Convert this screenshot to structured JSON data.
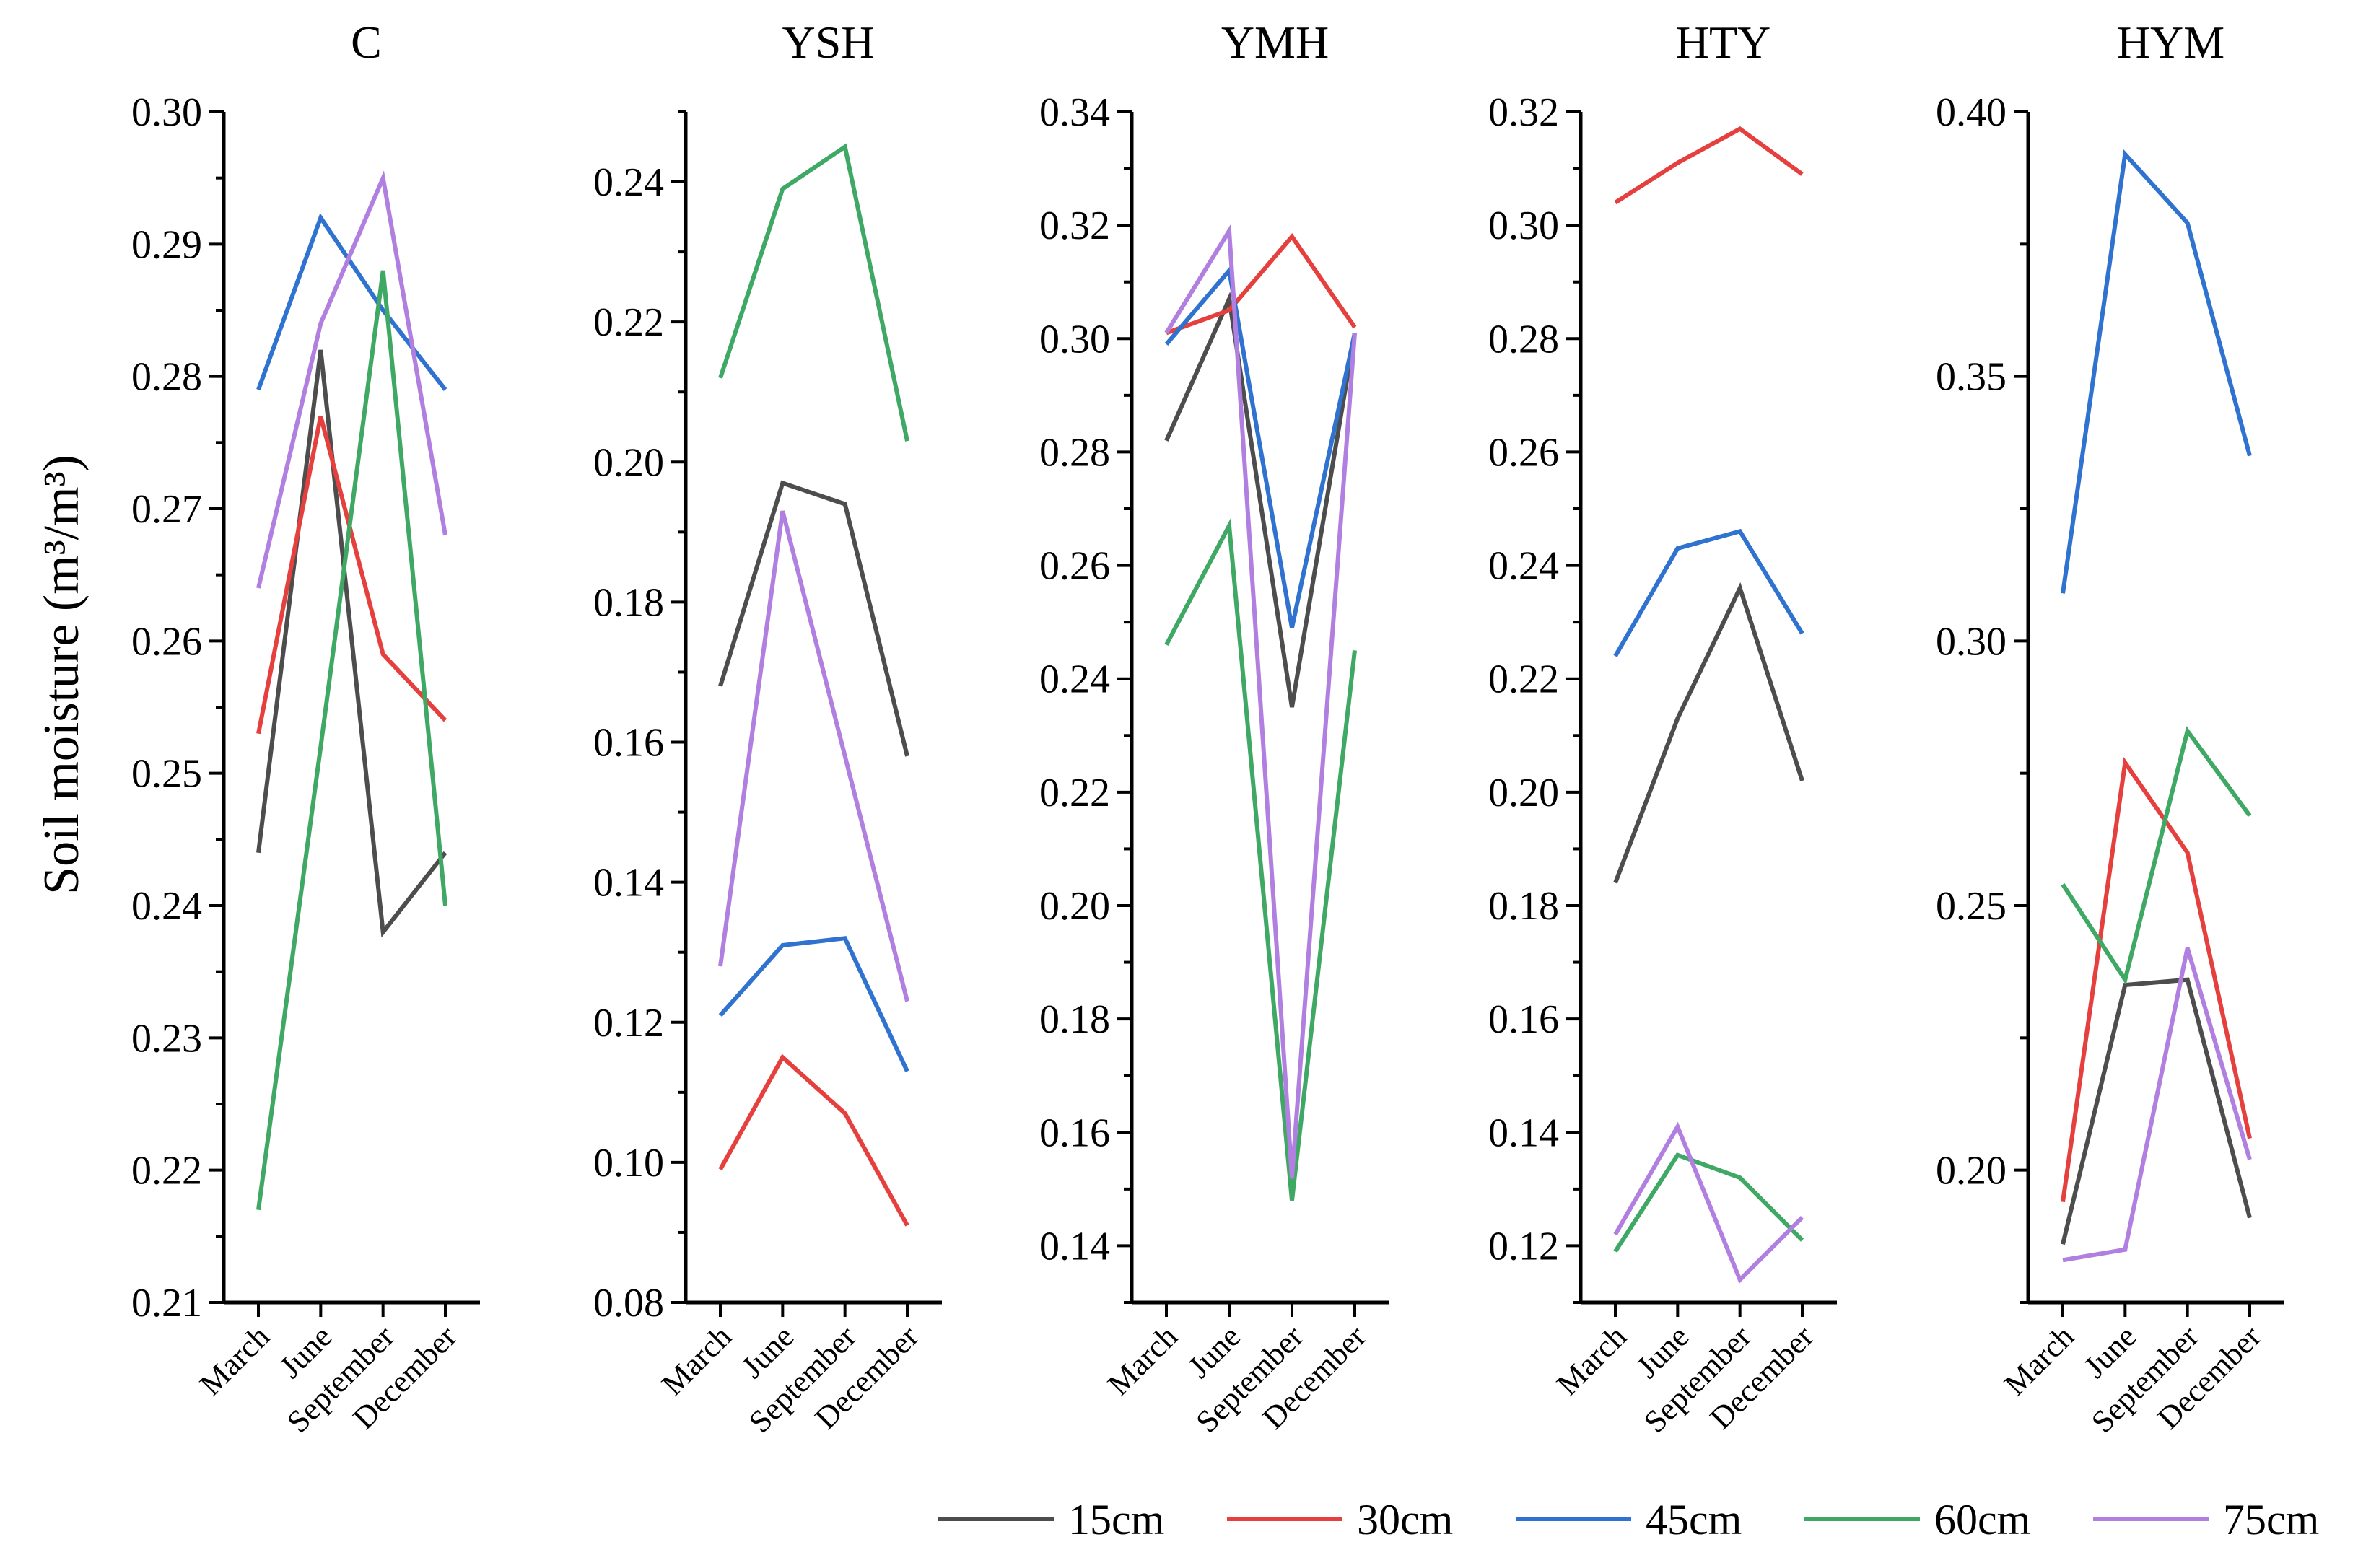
{
  "chart_data": {
    "type": "line",
    "ylabel": "Soil moisture (m³/m³)",
    "categories": [
      "March",
      "June",
      "September",
      "December"
    ],
    "legend": {
      "placement": "bottom-right",
      "entries": [
        {
          "name": "15cm",
          "color": "#4d4d4d"
        },
        {
          "name": "30cm",
          "color": "#e6403e"
        },
        {
          "name": "45cm",
          "color": "#2f72d0"
        },
        {
          "name": "60cm",
          "color": "#3ea864"
        },
        {
          "name": "75cm",
          "color": "#b07fe0"
        }
      ]
    },
    "panels": [
      {
        "title": "C",
        "ylim": [
          0.21,
          0.3
        ],
        "ticks": [
          "0.21",
          "0.22",
          "0.23",
          "0.24",
          "0.25",
          "0.26",
          "0.27",
          "0.28",
          "0.29",
          "0.30"
        ],
        "series": [
          {
            "name": "15cm",
            "values": [
              0.244,
              0.282,
              0.238,
              0.244
            ]
          },
          {
            "name": "30cm",
            "values": [
              0.253,
              0.277,
              0.259,
              0.254
            ]
          },
          {
            "name": "45cm",
            "values": [
              0.279,
              0.292,
              0.285,
              0.279
            ]
          },
          {
            "name": "60cm",
            "values": [
              0.217,
              0.252,
              0.288,
              0.24
            ]
          },
          {
            "name": "75cm",
            "values": [
              0.264,
              0.284,
              0.295,
              0.268
            ]
          }
        ]
      },
      {
        "title": "YSH",
        "ylim": [
          0.08,
          0.25
        ],
        "ticks": [
          "0.08",
          "0.10",
          "0.12",
          "0.14",
          "0.16",
          "0.18",
          "0.20",
          "0.22",
          "0.24"
        ],
        "series": [
          {
            "name": "15cm",
            "values": [
              0.168,
              0.197,
              0.194,
              0.158
            ]
          },
          {
            "name": "30cm",
            "values": [
              0.099,
              0.115,
              0.107,
              0.091
            ]
          },
          {
            "name": "45cm",
            "values": [
              0.121,
              0.131,
              0.132,
              0.113
            ]
          },
          {
            "name": "60cm",
            "values": [
              0.212,
              0.239,
              0.245,
              0.203
            ]
          },
          {
            "name": "75cm",
            "values": [
              0.128,
              0.193,
              0.158,
              0.123
            ]
          }
        ]
      },
      {
        "title": "YMH",
        "ylim": [
          0.13,
          0.34
        ],
        "ticks": [
          "0.14",
          "0.16",
          "0.18",
          "0.20",
          "0.22",
          "0.24",
          "0.26",
          "0.28",
          "0.30",
          "0.32",
          "0.34"
        ],
        "series": [
          {
            "name": "15cm",
            "values": [
              0.282,
              0.307,
              0.235,
              0.301
            ]
          },
          {
            "name": "30cm",
            "values": [
              0.301,
              0.305,
              0.318,
              0.302
            ]
          },
          {
            "name": "45cm",
            "values": [
              0.299,
              0.312,
              0.249,
              0.301
            ]
          },
          {
            "name": "60cm",
            "values": [
              0.246,
              0.267,
              0.148,
              0.245
            ]
          },
          {
            "name": "75cm",
            "values": [
              0.301,
              0.319,
              0.152,
              0.301
            ]
          }
        ]
      },
      {
        "title": "HTY",
        "ylim": [
          0.11,
          0.32
        ],
        "ticks": [
          "0.12",
          "0.14",
          "0.16",
          "0.18",
          "0.20",
          "0.22",
          "0.24",
          "0.26",
          "0.28",
          "0.30",
          "0.32"
        ],
        "series": [
          {
            "name": "15cm",
            "values": [
              0.184,
              0.213,
              0.236,
              0.202
            ]
          },
          {
            "name": "30cm",
            "values": [
              0.304,
              0.311,
              0.317,
              0.309
            ]
          },
          {
            "name": "45cm",
            "values": [
              0.224,
              0.243,
              0.246,
              0.228
            ]
          },
          {
            "name": "60cm",
            "values": [
              0.119,
              0.136,
              0.132,
              0.121
            ]
          },
          {
            "name": "75cm",
            "values": [
              0.122,
              0.141,
              0.114,
              0.125
            ]
          }
        ]
      },
      {
        "title": "HYM",
        "ylim": [
          0.175,
          0.4
        ],
        "ticks": [
          "0.20",
          "0.25",
          "0.30",
          "0.35",
          "0.40"
        ],
        "series": [
          {
            "name": "15cm",
            "values": [
              0.186,
              0.235,
              0.236,
              0.191
            ]
          },
          {
            "name": "30cm",
            "values": [
              0.194,
              0.277,
              0.26,
              0.206
            ]
          },
          {
            "name": "45cm",
            "values": [
              0.309,
              0.392,
              0.379,
              0.335
            ]
          },
          {
            "name": "60cm",
            "values": [
              0.254,
              0.236,
              0.283,
              0.267
            ]
          },
          {
            "name": "75cm",
            "values": [
              0.183,
              0.185,
              0.242,
              0.202
            ]
          }
        ]
      }
    ]
  }
}
